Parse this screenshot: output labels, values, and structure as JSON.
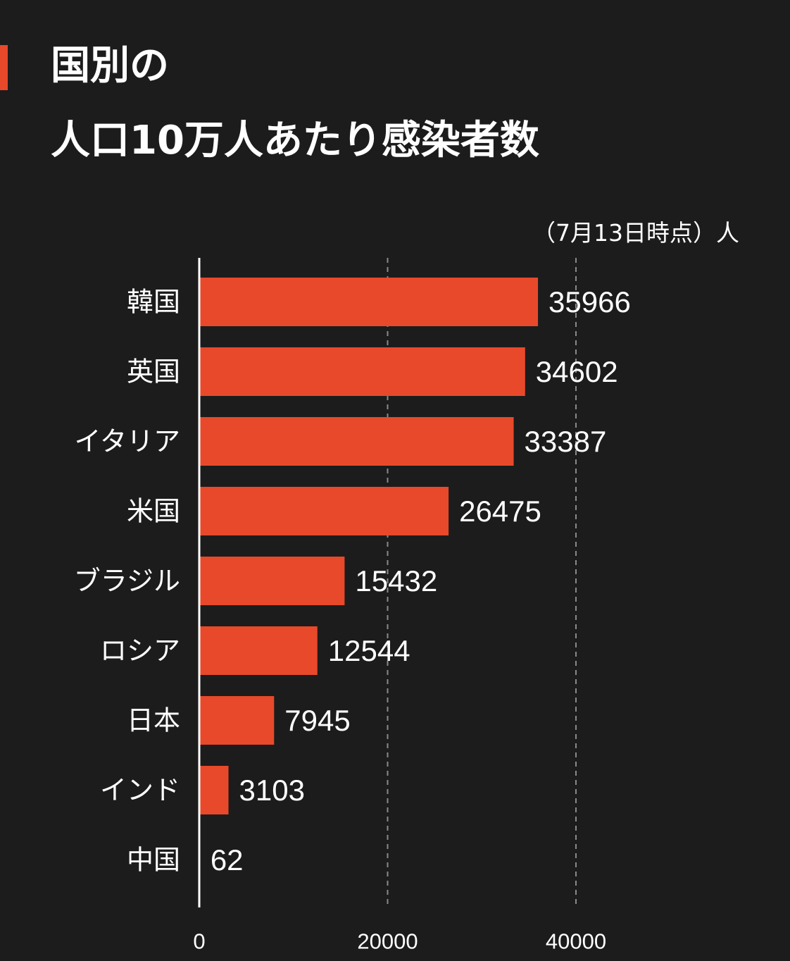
{
  "title": {
    "line1": "国別の",
    "line2": "人口10万人あたり感染者数"
  },
  "note": "（7月13日時点）人",
  "colors": {
    "background": "#1c1c1c",
    "bar": "#e8492a",
    "text": "#ffffff",
    "gridline": "#8a8a8a"
  },
  "chart_data": {
    "type": "bar",
    "orientation": "horizontal",
    "categories": [
      "韓国",
      "英国",
      "イタリア",
      "米国",
      "ブラジル",
      "ロシア",
      "日本",
      "インド",
      "中国"
    ],
    "values": [
      35966,
      34602,
      33387,
      26475,
      15432,
      12544,
      7945,
      3103,
      62
    ],
    "xticks": [
      0,
      20000,
      40000
    ],
    "xlim": [
      0,
      40000
    ],
    "grid": true,
    "grid_style": "dashed"
  }
}
